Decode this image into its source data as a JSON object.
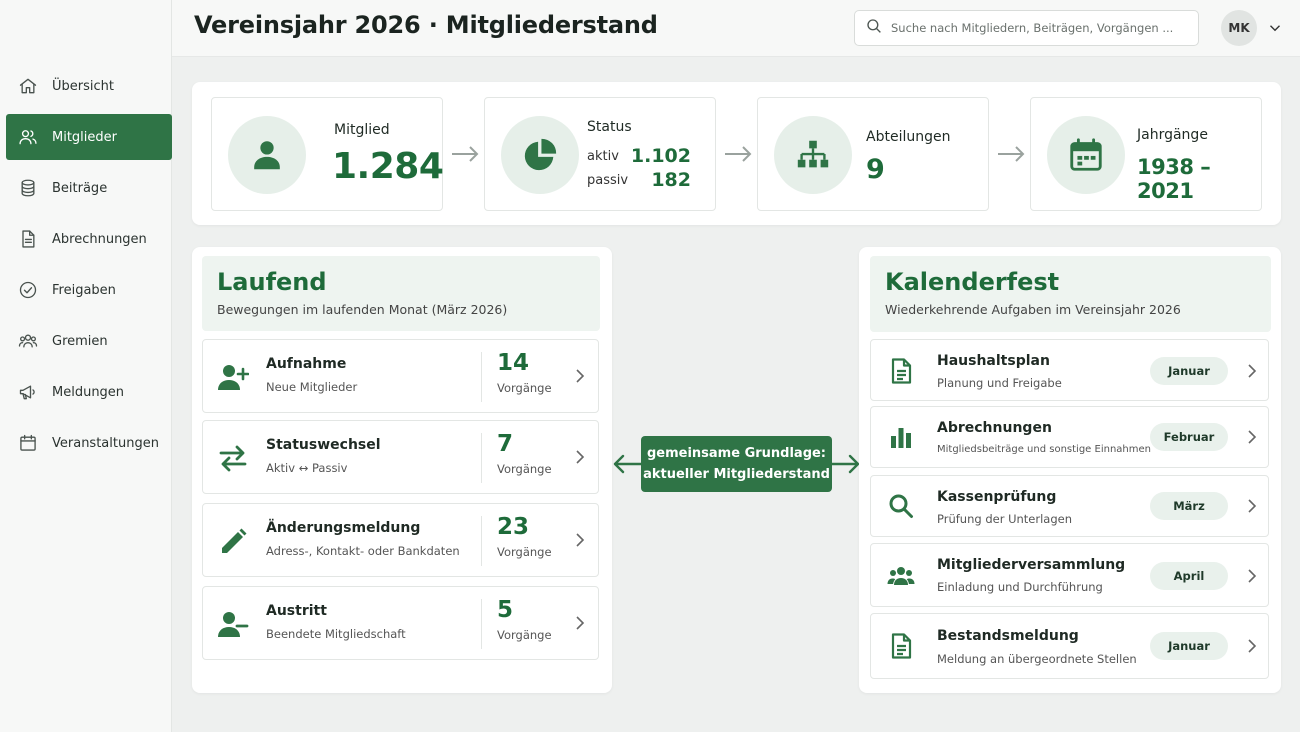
{
  "header": {
    "title": "Vereinsjahr 2026 · Mitgliederstand",
    "search_placeholder": "Suche nach Mitgliedern, Beiträgen, Vorgängen ...",
    "avatar_initials": "MK"
  },
  "sidebar": {
    "items": [
      {
        "label": "Übersicht",
        "icon": "home-icon",
        "active": false
      },
      {
        "label": "Mitglieder",
        "icon": "members-icon",
        "active": true
      },
      {
        "label": "Beiträge",
        "icon": "database-icon",
        "active": false
      },
      {
        "label": "Abrechnungen",
        "icon": "document-icon",
        "active": false
      },
      {
        "label": "Freigaben",
        "icon": "check-circle-icon",
        "active": false
      },
      {
        "label": "Gremien",
        "icon": "group-icon",
        "active": false
      },
      {
        "label": "Meldungen",
        "icon": "megaphone-icon",
        "active": false
      },
      {
        "label": "Veranstaltungen",
        "icon": "calendar-icon",
        "active": false
      }
    ]
  },
  "kpis": {
    "mitglied": {
      "label": "Mitglied",
      "value": "1.284",
      "icon": "person-icon"
    },
    "status": {
      "label": "Status",
      "icon": "pie-chart-icon",
      "rows": [
        {
          "label": "aktiv",
          "value": "1.102"
        },
        {
          "label": "passiv",
          "value": "182"
        }
      ]
    },
    "abteilungen": {
      "label": "Abteilungen",
      "value": "9",
      "icon": "org-chart-icon"
    },
    "jahrgaenge": {
      "label": "Jahrgänge",
      "value": "1938 – 2021",
      "icon": "calendar-icon"
    }
  },
  "laufend": {
    "title": "Laufend",
    "subtitle": "Bewegungen im laufenden Monat (März 2026)",
    "rows": [
      {
        "title": "Aufnahme",
        "subtitle": "Neue Mitglieder",
        "count": "14",
        "unit": "Vorgänge",
        "icon": "person-add-icon"
      },
      {
        "title": "Statuswechsel",
        "subtitle": "Aktiv ↔ Passiv",
        "count": "7",
        "unit": "Vorgänge",
        "icon": "swap-arrows-icon"
      },
      {
        "title": "Änderungsmeldung",
        "subtitle": "Adress-, Kontakt- oder Bankdaten",
        "count": "23",
        "unit": "Vorgänge",
        "icon": "pencil-icon"
      },
      {
        "title": "Austritt",
        "subtitle": "Beendete Mitgliedschaft",
        "count": "5",
        "unit": "Vorgänge",
        "icon": "person-remove-icon"
      }
    ]
  },
  "connector": {
    "line1": "gemeinsame Grundlage:",
    "line2": "aktueller Mitgliederstand"
  },
  "kalenderfest": {
    "title": "Kalenderfest",
    "subtitle": "Wiederkehrende Aufgaben im Vereinsjahr 2026",
    "rows": [
      {
        "title": "Haushaltsplan",
        "subtitle": "Planung und Freigabe",
        "month": "Januar",
        "icon": "document-icon"
      },
      {
        "title": "Abrechnungen",
        "subtitle": "Mitgliedsbeiträge und sonstige Einnahmen",
        "month": "Februar",
        "icon": "bar-chart-icon"
      },
      {
        "title": "Kassenprüfung",
        "subtitle": "Prüfung der Unterlagen",
        "month": "März",
        "icon": "search-icon"
      },
      {
        "title": "Mitgliederversammlung",
        "subtitle": "Einladung und Durchführung",
        "month": "April",
        "icon": "group-icon"
      },
      {
        "title": "Bestandsmeldung",
        "subtitle": "Meldung an übergeordnete Stellen",
        "month": "Januar",
        "icon": "document-icon"
      }
    ]
  },
  "colors": {
    "accent": "#2f7446",
    "accent_text": "#1e6b3a",
    "icon_circle": "#e6efe9",
    "panel_head": "#eef4f0"
  }
}
